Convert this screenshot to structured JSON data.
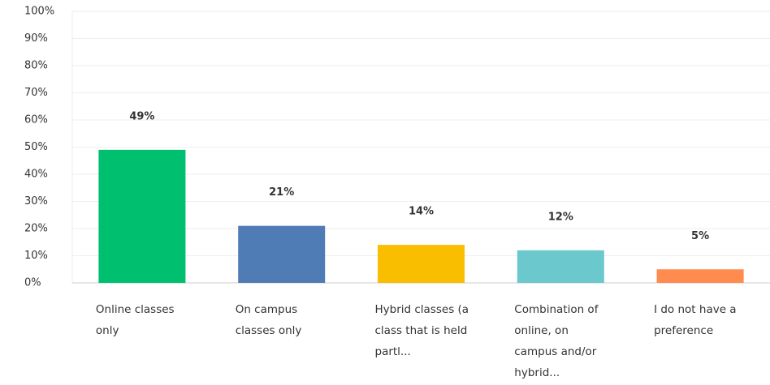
{
  "chart_data": {
    "type": "bar",
    "categories": [
      "Online classes only",
      "On campus classes only",
      "Hybrid classes (a class that is held partl...",
      "Combination of online, on campus and/or hybrid...",
      "I do not have a preference"
    ],
    "values": [
      49,
      21,
      14,
      12,
      5
    ],
    "value_labels": [
      "49%",
      "21%",
      "14%",
      "12%",
      "5%"
    ],
    "colors": [
      "#00bf6f",
      "#507cb6",
      "#f9be00",
      "#6bc8cd",
      "#ff8b4f"
    ],
    "ylim": [
      0,
      100
    ],
    "yticks": [
      {
        "value": 0,
        "label": "0%"
      },
      {
        "value": 10,
        "label": "10%"
      },
      {
        "value": 20,
        "label": "20%"
      },
      {
        "value": 30,
        "label": "30%"
      },
      {
        "value": 40,
        "label": "40%"
      },
      {
        "value": 50,
        "label": "50%"
      },
      {
        "value": 60,
        "label": "60%"
      },
      {
        "value": 70,
        "label": "70%"
      },
      {
        "value": 80,
        "label": "80%"
      },
      {
        "value": 90,
        "label": "90%"
      },
      {
        "value": 100,
        "label": "100%"
      }
    ],
    "grid": true
  }
}
